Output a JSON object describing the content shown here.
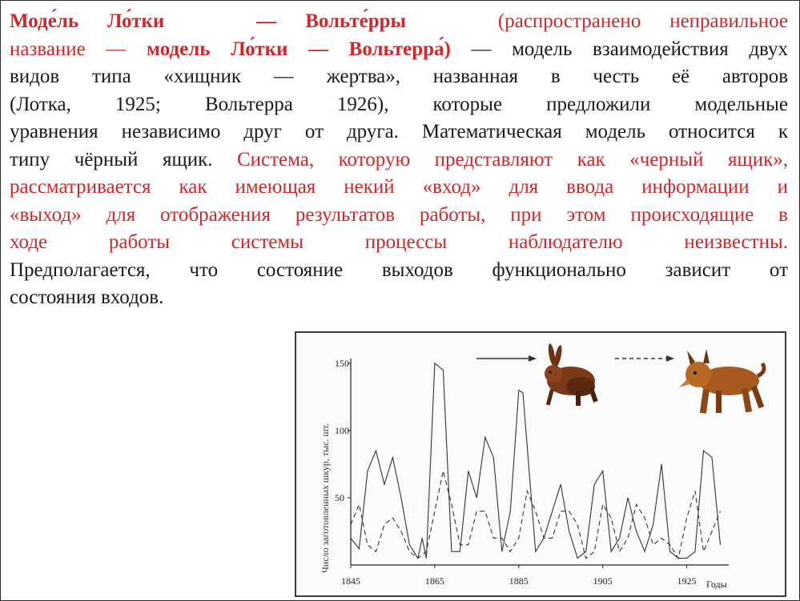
{
  "text": {
    "l1": {
      "a": "Моде́ль",
      "b": "Ло́тки —",
      "c": "Вольте́рры",
      "d": " (распространено",
      "e": "неправильное"
    },
    "l2": {
      "a": "название — ",
      "b": "модель Ло́тки — Вольтерра́)",
      "c": " — модель взаимодействия двух"
    },
    "l3": "видов типа «хищник — жертва», названная в честь её авторов",
    "l4": "(Лотка, 1925; Вольтерра 1926), которые предложили модельные",
    "l5": "уравнения независимо друг от друга. Математическая модель относится к",
    "l6": {
      "a": "типу чёрный ящик. ",
      "b": "Система, которую представляют как «черный ящик»,"
    },
    "l7": "рассматривается как имеющая некий «вход» для ввода информации и",
    "l8": "«выход» для отображения результатов работы, при этом происходящие в",
    "l9": "ходе работы системы процессы наблюдателю неизвестны.",
    "l10": "Предполагается, что состояние выходов функционально зависит от",
    "l11": "состояния входов."
  },
  "chart": {
    "ylabel": "Число заготовленных шкур, тыс. шт.",
    "xlabel_unit": "Годы",
    "x_ticks": [
      "1845",
      "1865",
      "1885",
      "1905",
      "1925"
    ],
    "y_ticks": [
      "50",
      "100",
      "150"
    ],
    "legend_hare": "hare-icon",
    "legend_lynx": "lynx-icon"
  },
  "chart_data": {
    "type": "line",
    "xlabel": "Годы",
    "ylabel": "Число заготовленных шкур, тыс. шт.",
    "xlim": [
      1845,
      1935
    ],
    "ylim": [
      0,
      150
    ],
    "series": [
      {
        "style": "solid",
        "x": [
          1845,
          1847,
          1849,
          1851,
          1853,
          1855,
          1857,
          1859,
          1861,
          1862,
          1863,
          1865,
          1867,
          1869,
          1871,
          1873,
          1875,
          1877,
          1879,
          1881,
          1883,
          1885,
          1886,
          1889,
          1891,
          1893,
          1895,
          1897,
          1899,
          1901,
          1903,
          1905,
          1907,
          1909,
          1911,
          1913,
          1915,
          1917,
          1919,
          1921,
          1923,
          1925,
          1927,
          1929,
          1931,
          1933
        ],
        "y": [
          20,
          12,
          70,
          85,
          60,
          80,
          50,
          15,
          5,
          20,
          5,
          150,
          145,
          10,
          10,
          70,
          50,
          95,
          80,
          10,
          40,
          130,
          128,
          10,
          20,
          40,
          60,
          25,
          5,
          10,
          60,
          70,
          10,
          20,
          50,
          25,
          10,
          30,
          75,
          10,
          5,
          5,
          10,
          85,
          80,
          15
        ]
      },
      {
        "style": "dashed",
        "x": [
          1845,
          1847,
          1849,
          1851,
          1853,
          1855,
          1857,
          1859,
          1861,
          1863,
          1865,
          1867,
          1869,
          1871,
          1873,
          1875,
          1877,
          1879,
          1881,
          1883,
          1885,
          1887,
          1889,
          1891,
          1893,
          1895,
          1897,
          1899,
          1901,
          1903,
          1905,
          1907,
          1909,
          1911,
          1913,
          1915,
          1917,
          1919,
          1921,
          1923,
          1925,
          1927,
          1929,
          1931,
          1933
        ],
        "y": [
          30,
          45,
          15,
          10,
          30,
          35,
          25,
          10,
          5,
          10,
          40,
          70,
          45,
          15,
          15,
          40,
          40,
          20,
          20,
          10,
          20,
          55,
          40,
          20,
          20,
          40,
          40,
          30,
          5,
          10,
          45,
          35,
          10,
          20,
          45,
          35,
          15,
          20,
          15,
          5,
          35,
          55,
          10,
          25,
          40
        ]
      }
    ]
  }
}
